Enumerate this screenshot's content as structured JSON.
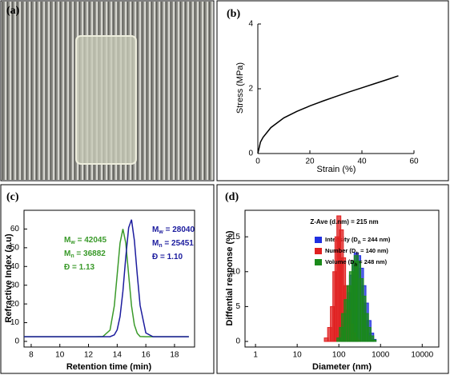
{
  "figure_a": {
    "label": "(a)"
  },
  "chart_data": [
    {
      "type": "line",
      "label": "(b)",
      "x_label": "Strain (%)",
      "y_label": "Stress (MPa)",
      "xlim": [
        0,
        60
      ],
      "ylim": [
        0,
        4
      ],
      "xticks": [
        0,
        20,
        40,
        60
      ],
      "yticks": [
        0,
        2,
        4
      ],
      "x": [
        0,
        1,
        2,
        5,
        10,
        15,
        20,
        25,
        30,
        35,
        40,
        45,
        50,
        54
      ],
      "series": [
        {
          "color": "#000000",
          "values": [
            0,
            0.35,
            0.5,
            0.8,
            1.1,
            1.3,
            1.47,
            1.62,
            1.76,
            1.9,
            2.03,
            2.16,
            2.29,
            2.4
          ]
        }
      ]
    },
    {
      "type": "line",
      "label": "(c)",
      "x_label": "Retention time (min)",
      "y_label": "Refractive Index (a.u)",
      "xlim": [
        7.5,
        19.4
      ],
      "ylim": [
        -3,
        70
      ],
      "xticks": [
        8,
        10,
        12,
        14,
        16,
        18
      ],
      "yticks": [
        0,
        10,
        20,
        30,
        40,
        50,
        60
      ],
      "x": [
        7.5,
        12,
        12.5,
        13,
        13.5,
        13.8,
        14,
        14.2,
        14.4,
        14.6,
        14.8,
        15,
        15.2,
        15.4,
        15.6,
        16,
        16.5,
        17,
        19
      ],
      "series": [
        {
          "color": "#3a9a2a",
          "values": [
            2.5,
            2.5,
            2.5,
            2.6,
            6.0,
            19,
            35.6,
            52.5,
            60,
            52.5,
            35.6,
            19,
            8.8,
            4.3,
            2.6,
            2.5,
            2.5,
            2.5,
            2.5
          ]
        },
        {
          "color": "#1c1c9e",
          "values": [
            2.5,
            2.5,
            2.5,
            2.5,
            2.5,
            3.5,
            6.2,
            13.3,
            26.8,
            45,
            60.7,
            65,
            53.9,
            35.7,
            19.2,
            4.5,
            2.5,
            2.5,
            2.5
          ]
        }
      ],
      "annotations": [
        {
          "color": "#3a9a2a",
          "lines": [
            {
              "text": "M",
              "sub": "w",
              "rest": " = 42045"
            },
            {
              "text": "M",
              "sub": "n",
              "rest": " = 36882"
            },
            {
              "text": "Đ = 1.13"
            }
          ]
        },
        {
          "color": "#1c1c9e",
          "lines": [
            {
              "text": "M",
              "sub": "w",
              "rest": " = 28040"
            },
            {
              "text": "M",
              "sub": "n",
              "rest": " = 25451"
            },
            {
              "text": "Đ = 1.10"
            }
          ]
        }
      ]
    },
    {
      "type": "bar",
      "label": "(d)",
      "x_label": "Diameter (nm)",
      "y_label": "Diffential response (%)",
      "xscale": "log",
      "title": "Z-Ave (d.nm) = 215 nm",
      "xlim": [
        0.56,
        25000
      ],
      "ylim": [
        -0.8,
        18.8
      ],
      "xticks": [
        1,
        10,
        100,
        1000,
        10000
      ],
      "yticks": [
        0,
        5,
        10,
        15
      ],
      "x": [
        50,
        60,
        70,
        80,
        90,
        100,
        115,
        130,
        150,
        175,
        200,
        230,
        260,
        300,
        350,
        400,
        460,
        530,
        615,
        700
      ],
      "series": [
        {
          "name": [
            "Intensity (D",
            "h",
            " = 244 nm)"
          ],
          "color": "#2030e0",
          "values": [
            0,
            0,
            0,
            0,
            0,
            0,
            1,
            2.5,
            4.5,
            7,
            9.5,
            11.5,
            12.7,
            12.3,
            10.5,
            8,
            5.5,
            3,
            1.2,
            0.3
          ]
        },
        {
          "name": [
            "Number (D",
            "h",
            " = 140 nm)"
          ],
          "color": "#e02020",
          "values": [
            0.5,
            2,
            5,
            10,
            15,
            18,
            16,
            12,
            8,
            4.5,
            2.5,
            1.2,
            0.5,
            0.2,
            0,
            0,
            0,
            0,
            0,
            0
          ]
        },
        {
          "name": [
            "Volume (D",
            "h",
            " = 248 nm)"
          ],
          "color": "#1a8a1a",
          "values": [
            0,
            0,
            0,
            0,
            0,
            0.5,
            2,
            4,
            6,
            8,
            10,
            11.5,
            12.3,
            11.5,
            9,
            6.5,
            4,
            2,
            0.8,
            0.2
          ]
        }
      ]
    }
  ]
}
